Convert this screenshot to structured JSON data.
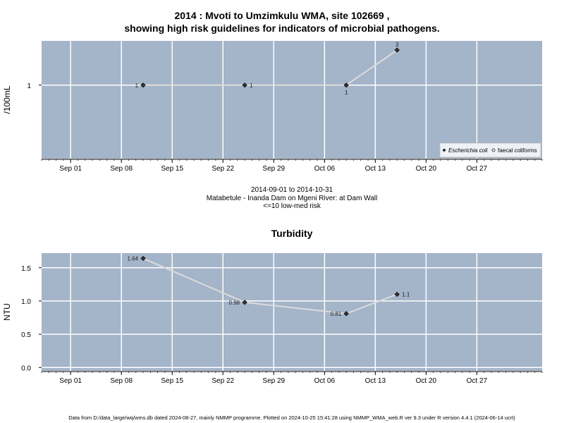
{
  "titles": {
    "line1": "2014 : Mvoti to Umzimkulu WMA, site 102669 ,",
    "line2": "showing high risk guidelines for indicators of microbial pathogens."
  },
  "captions": {
    "range": "2014-09-01 to 2014-10-31",
    "site": "Matabetule - Inanda Dam on Mgeni River: at Dam Wall",
    "risk": "<=10 low-med risk"
  },
  "footer": "Data from D:/data_large/wq/wms.db dated 2024-08-27, mainly NMMP programme. Plotted on 2024-10-25 15:41:28 using NMMP_WMA_web.R ver 9.3 under R version 4.4.1 (2024-06-14 ucrt)",
  "colors": {
    "panel_bg": "#a4b4c9",
    "grid": "#ffffff",
    "line": "#dcdcdc",
    "point": "#333333"
  },
  "chart_data": [
    {
      "type": "line",
      "title": "",
      "ylabel": "/100mL",
      "xlim": [
        "2014-08-28",
        "2014-11-05"
      ],
      "y_scale": "log",
      "ylim": [
        0.1,
        4
      ],
      "x_ticks": [
        "Sep 01",
        "Sep 08",
        "Sep 15",
        "Sep 22",
        "Sep 29",
        "Oct 06",
        "Oct 13",
        "Oct 20",
        "Oct 27"
      ],
      "x_tick_dates": [
        "2014-09-01",
        "2014-09-08",
        "2014-09-15",
        "2014-09-22",
        "2014-09-29",
        "2014-10-06",
        "2014-10-13",
        "2014-10-20",
        "2014-10-27"
      ],
      "y_ticks": [
        {
          "value": 1,
          "label": "1"
        }
      ],
      "grid": true,
      "legend": {
        "placement": "bottom-right",
        "entries": [
          {
            "label": "Escherichia coli",
            "marker": "filled-diamond",
            "italic": true
          },
          {
            "label": "faecal coliforms",
            "marker": "open-circle",
            "italic": false
          }
        ]
      },
      "series": [
        {
          "name": "Escherichia coli",
          "x": [
            "2014-09-11",
            "2014-09-25",
            "2014-10-09",
            "2014-10-16"
          ],
          "values": [
            1,
            1,
            1,
            3
          ],
          "labels": [
            "1",
            "1",
            "1",
            "3"
          ],
          "label_pos": [
            "left",
            "right",
            "below",
            "above"
          ]
        }
      ]
    },
    {
      "type": "line",
      "title": "Turbidity",
      "ylabel": "NTU",
      "xlim": [
        "2014-08-28",
        "2014-11-05"
      ],
      "ylim": [
        -0.05,
        1.72
      ],
      "x_ticks": [
        "Sep 01",
        "Sep 08",
        "Sep 15",
        "Sep 22",
        "Sep 29",
        "Oct 06",
        "Oct 13",
        "Oct 20",
        "Oct 27"
      ],
      "x_tick_dates": [
        "2014-09-01",
        "2014-09-08",
        "2014-09-15",
        "2014-09-22",
        "2014-09-29",
        "2014-10-06",
        "2014-10-13",
        "2014-10-20",
        "2014-10-27"
      ],
      "y_ticks": [
        {
          "value": 0,
          "label": "0.0"
        },
        {
          "value": 0.5,
          "label": "0.5"
        },
        {
          "value": 1.0,
          "label": "1.0"
        },
        {
          "value": 1.5,
          "label": "1.5"
        }
      ],
      "grid": true,
      "series": [
        {
          "name": "Turbidity",
          "x": [
            "2014-09-11",
            "2014-09-25",
            "2014-10-09",
            "2014-10-16"
          ],
          "values": [
            1.64,
            0.98,
            0.81,
            1.1
          ],
          "labels": [
            "1.64",
            "0.98",
            "0.81",
            "1.1"
          ],
          "label_pos": [
            "left",
            "left",
            "left",
            "right"
          ]
        }
      ]
    }
  ]
}
